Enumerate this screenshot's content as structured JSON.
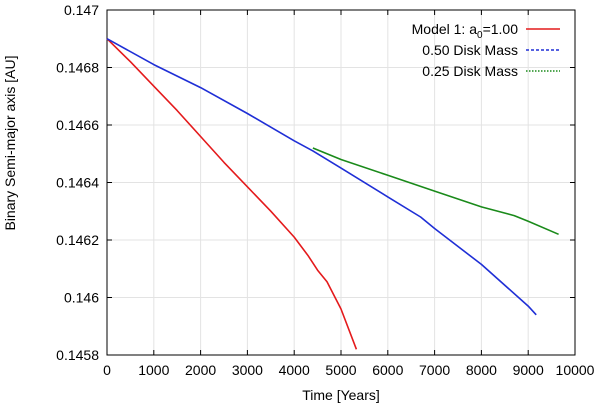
{
  "chart_data": {
    "type": "line",
    "title": "",
    "xlabel": "Time [Years]",
    "ylabel": "Binary Semi-major axis [AU]",
    "xlim": [
      0,
      10000
    ],
    "ylim": [
      0.1458,
      0.147
    ],
    "xticks": [
      0,
      1000,
      2000,
      3000,
      4000,
      5000,
      6000,
      7000,
      8000,
      9000,
      10000
    ],
    "xtick_labels": [
      "0",
      "1000",
      "2000",
      "3000",
      "4000",
      "5000",
      "6000",
      "7000",
      "8000",
      "9000",
      "10000"
    ],
    "yticks": [
      0.1458,
      0.146,
      0.1462,
      0.1464,
      0.1466,
      0.1468,
      0.147
    ],
    "ytick_labels": [
      "0.1458",
      "0.146",
      "0.1462",
      "0.1464",
      "0.1466",
      "0.1468",
      "0.147"
    ],
    "grid": true,
    "legend_position": "top-right",
    "series": [
      {
        "name": "Model 1: a0=1.00",
        "legend_main": "Model 1: a",
        "legend_sub": "0",
        "legend_tail": "=1.00",
        "color": "#e41a1c",
        "dash": "solid",
        "x": [
          0,
          500,
          1000,
          1500,
          2000,
          2500,
          3000,
          3500,
          4000,
          4300,
          4500,
          4700,
          5000,
          5330
        ],
        "y": [
          0.1469,
          0.14682,
          0.146735,
          0.14665,
          0.14656,
          0.14647,
          0.146385,
          0.1463,
          0.14621,
          0.146145,
          0.146095,
          0.146055,
          0.14596,
          0.14582
        ]
      },
      {
        "name": "0.50 Disk Mass",
        "legend_main": "0.50 Disk Mass",
        "color": "#1f2fd6",
        "dash": "dashed",
        "x": [
          0,
          1000,
          2000,
          3000,
          4000,
          4400,
          5000,
          6000,
          6700,
          7000,
          8000,
          9000,
          9170
        ],
        "y": [
          0.1469,
          0.14681,
          0.14673,
          0.14664,
          0.146545,
          0.14651,
          0.14645,
          0.14635,
          0.14628,
          0.14624,
          0.146115,
          0.14597,
          0.14594
        ]
      },
      {
        "name": "0.25 Disk Mass",
        "legend_main": "0.25 Disk Mass",
        "color": "#1a8a1a",
        "dash": "dotted",
        "x": [
          4400,
          5000,
          6000,
          7000,
          8000,
          8700,
          9000,
          9650
        ],
        "y": [
          0.14652,
          0.14648,
          0.146425,
          0.14637,
          0.146315,
          0.146285,
          0.146265,
          0.14622
        ]
      }
    ]
  }
}
